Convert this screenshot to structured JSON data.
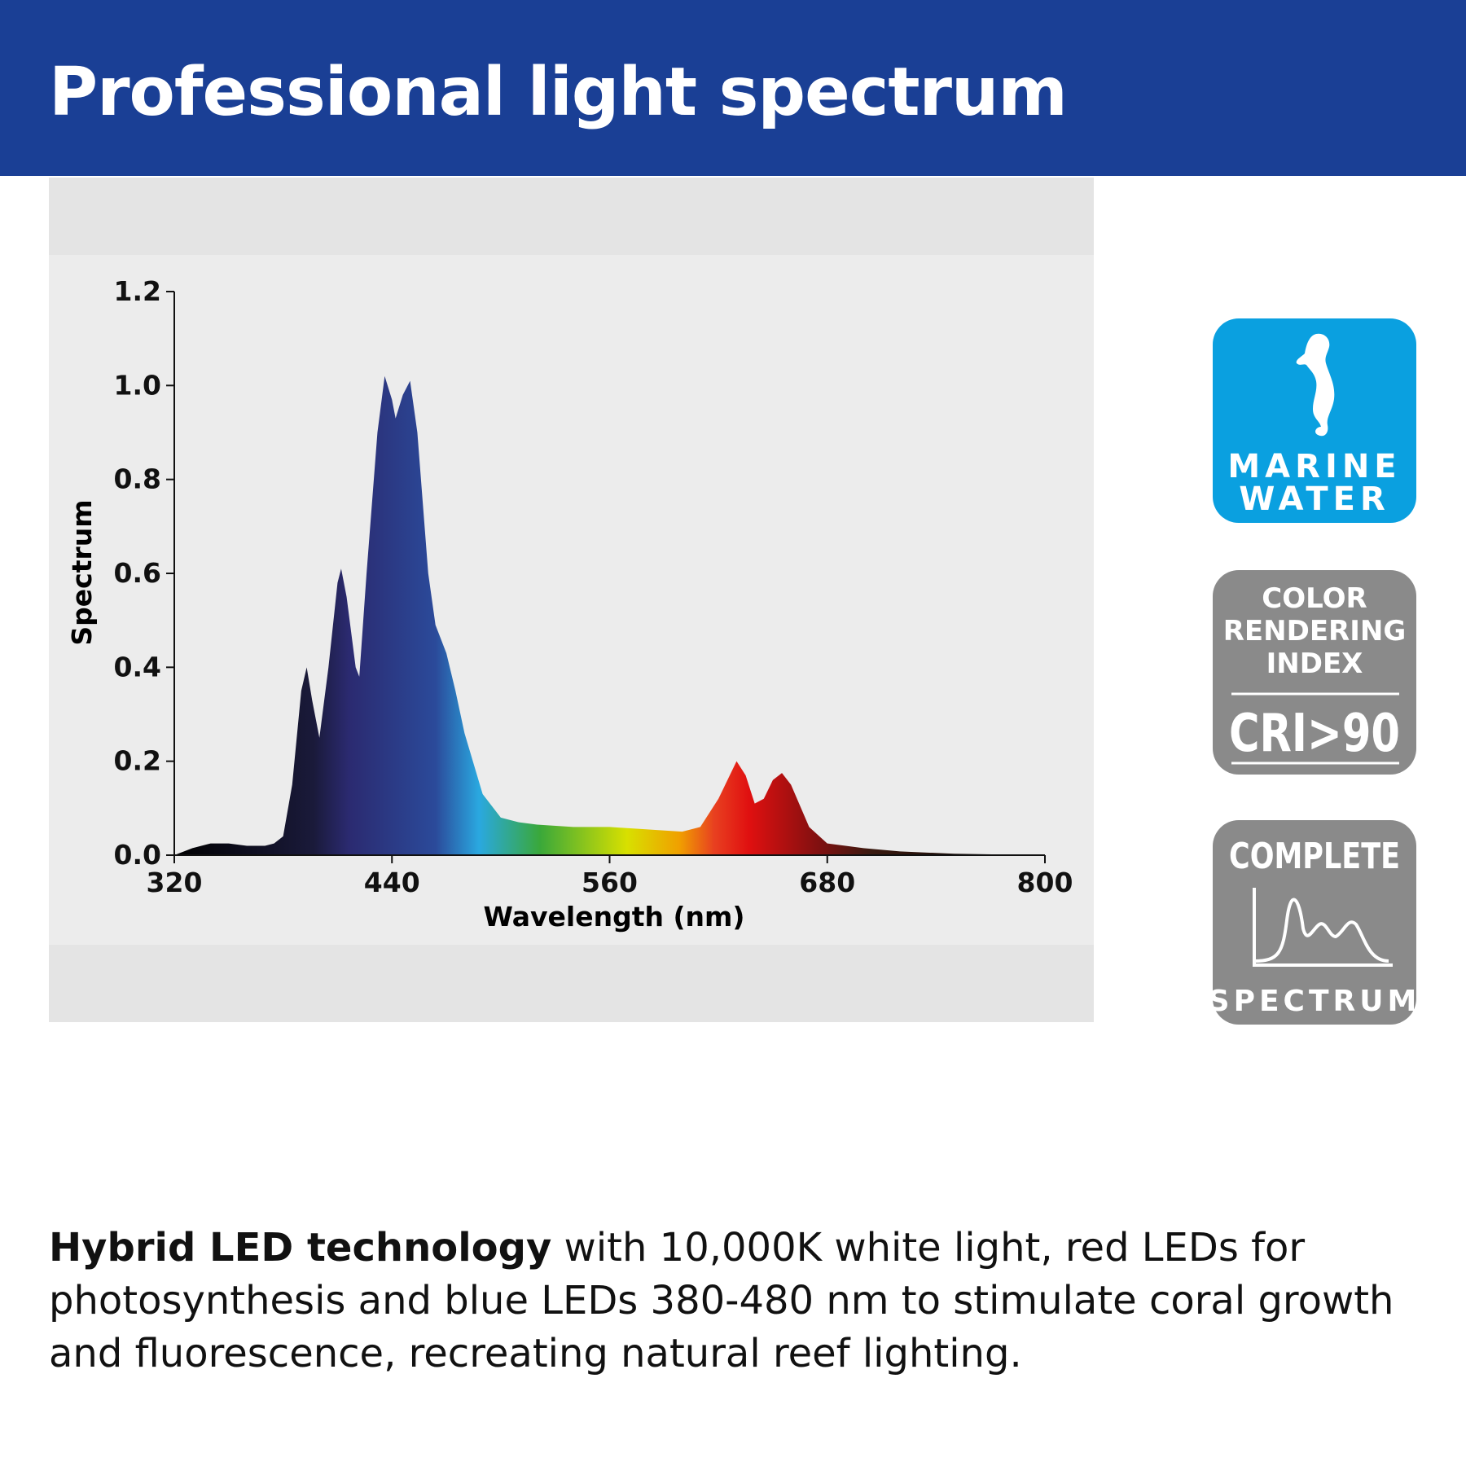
{
  "header": {
    "title": "Professional light spectrum"
  },
  "chart_data": {
    "type": "area",
    "xlabel": "Wavelength (nm)",
    "ylabel": "Spectrum",
    "x": [
      320,
      330,
      340,
      350,
      360,
      370,
      375,
      380,
      385,
      390,
      393,
      396,
      400,
      405,
      410,
      412,
      415,
      420,
      422,
      426,
      432,
      436,
      440,
      442,
      446,
      450,
      454,
      460,
      464,
      470,
      475,
      480,
      490,
      500,
      510,
      520,
      540,
      560,
      580,
      600,
      610,
      620,
      630,
      635,
      640,
      645,
      650,
      655,
      660,
      670,
      680,
      700,
      720,
      750,
      800
    ],
    "y": [
      0,
      0.015,
      0.025,
      0.025,
      0.02,
      0.02,
      0.025,
      0.04,
      0.15,
      0.35,
      0.4,
      0.33,
      0.25,
      0.4,
      0.58,
      0.61,
      0.55,
      0.4,
      0.38,
      0.6,
      0.9,
      1.02,
      0.97,
      0.93,
      0.98,
      1.01,
      0.9,
      0.6,
      0.49,
      0.43,
      0.35,
      0.26,
      0.13,
      0.08,
      0.07,
      0.065,
      0.06,
      0.06,
      0.055,
      0.05,
      0.06,
      0.12,
      0.2,
      0.17,
      0.11,
      0.12,
      0.16,
      0.175,
      0.15,
      0.06,
      0.025,
      0.015,
      0.008,
      0.003,
      0
    ],
    "xlim": [
      320,
      800
    ],
    "ylim": [
      0,
      1.2
    ],
    "xticks": [
      320,
      440,
      560,
      680,
      800
    ],
    "yticks": [
      {
        "value": 0,
        "label": "0.0"
      },
      0.2,
      0.4,
      0.6,
      0.8,
      {
        "value": 1,
        "label": "1.0"
      },
      1.2
    ]
  },
  "badges": [
    {
      "lines": [
        "MARINE",
        "WATER"
      ]
    },
    {
      "lines": [
        "COLOR",
        "RENDERING",
        "INDEX"
      ],
      "value": "CRI>90"
    },
    {
      "lines": [
        "COMPLETE",
        "SPECTRUM"
      ]
    }
  ],
  "description": {
    "bold": "Hybrid LED technology",
    "text": " with 10,000K white light, red LEDs for photosynthesis and blue LEDs 380-480 nm to stimulate coral growth and fluorescence, recreating natural reef lighting."
  }
}
